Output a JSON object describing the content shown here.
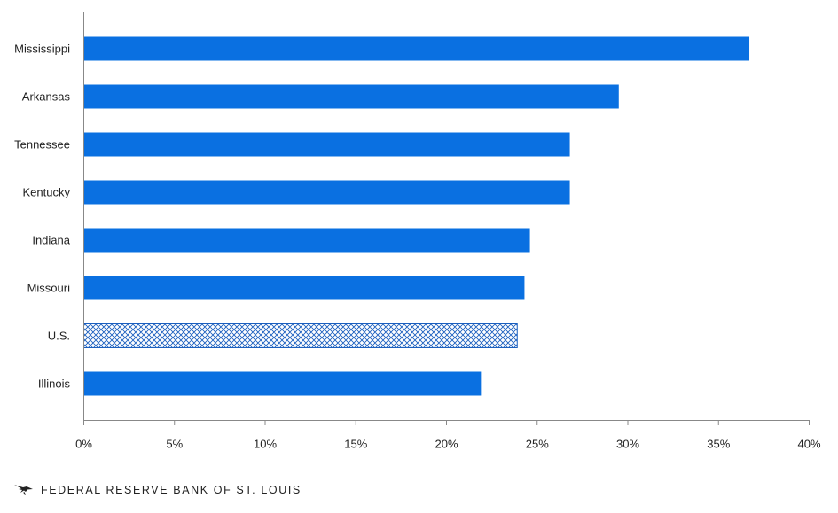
{
  "chart_data": {
    "type": "bar",
    "orientation": "horizontal",
    "categories": [
      "Mississippi",
      "Arkansas",
      "Tennessee",
      "Kentucky",
      "Indiana",
      "Missouri",
      "U.S.",
      "Illinois"
    ],
    "values": [
      36.7,
      29.5,
      26.8,
      26.8,
      24.6,
      24.3,
      23.9,
      21.9
    ],
    "highlight": "U.S.",
    "xlim": [
      0,
      40
    ],
    "xticks": [
      "0%",
      "5%",
      "10%",
      "15%",
      "20%",
      "25%",
      "30%",
      "35%",
      "40%"
    ],
    "title": "",
    "xlabel": "",
    "ylabel": "",
    "grid": false,
    "colors": {
      "bar": "#0a70e1",
      "highlight_pattern": "#1b5fbf",
      "axis": "#888888"
    }
  },
  "footer": {
    "brand_text": "FEDERAL RESERVE BANK OF ST. LOUIS",
    "logo_icon": "eagle-icon"
  }
}
